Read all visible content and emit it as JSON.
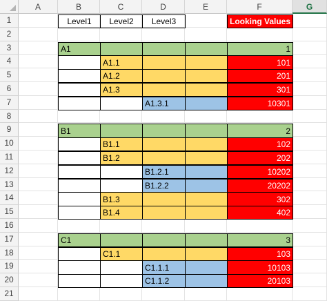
{
  "colors": {
    "green": "#a9d18e",
    "yellow": "#ffd966",
    "blue": "#9dc3e6",
    "red": "#ff0000",
    "white": "#ffffff"
  },
  "columns": [
    "A",
    "B",
    "C",
    "D",
    "E",
    "F",
    "G"
  ],
  "active_column": "G",
  "rows": [
    "1",
    "2",
    "3",
    "4",
    "5",
    "6",
    "7",
    "8",
    "9",
    "10",
    "11",
    "12",
    "13",
    "14",
    "15",
    "16",
    "17",
    "18",
    "19",
    "20",
    "21"
  ],
  "headers": {
    "level1": "Level1",
    "level2": "Level2",
    "level3": "Level3",
    "looking_values": "Looking Values"
  },
  "cells": [
    {
      "row": 3,
      "col": "B",
      "text": "A1",
      "fill": "green"
    },
    {
      "row": 3,
      "col": "C",
      "text": "",
      "fill": "green"
    },
    {
      "row": 3,
      "col": "D",
      "text": "",
      "fill": "green"
    },
    {
      "row": 3,
      "col": "E",
      "text": "",
      "fill": "green"
    },
    {
      "row": 3,
      "col": "F",
      "text": "1",
      "fill": "green",
      "align": "right"
    },
    {
      "row": 4,
      "col": "B",
      "text": "",
      "fill": "white"
    },
    {
      "row": 4,
      "col": "C",
      "text": "A1.1",
      "fill": "yellow"
    },
    {
      "row": 4,
      "col": "D",
      "text": "",
      "fill": "yellow"
    },
    {
      "row": 4,
      "col": "E",
      "text": "",
      "fill": "yellow"
    },
    {
      "row": 4,
      "col": "F",
      "text": "101",
      "fill": "red",
      "align": "right"
    },
    {
      "row": 5,
      "col": "B",
      "text": "",
      "fill": "white"
    },
    {
      "row": 5,
      "col": "C",
      "text": "A1.2",
      "fill": "yellow"
    },
    {
      "row": 5,
      "col": "D",
      "text": "",
      "fill": "yellow"
    },
    {
      "row": 5,
      "col": "E",
      "text": "",
      "fill": "yellow"
    },
    {
      "row": 5,
      "col": "F",
      "text": "201",
      "fill": "red",
      "align": "right"
    },
    {
      "row": 6,
      "col": "B",
      "text": "",
      "fill": "white"
    },
    {
      "row": 6,
      "col": "C",
      "text": "A1.3",
      "fill": "yellow"
    },
    {
      "row": 6,
      "col": "D",
      "text": "",
      "fill": "yellow"
    },
    {
      "row": 6,
      "col": "E",
      "text": "",
      "fill": "yellow"
    },
    {
      "row": 6,
      "col": "F",
      "text": "301",
      "fill": "red",
      "align": "right"
    },
    {
      "row": 7,
      "col": "B",
      "text": "",
      "fill": "white"
    },
    {
      "row": 7,
      "col": "C",
      "text": "",
      "fill": "white"
    },
    {
      "row": 7,
      "col": "D",
      "text": "A1.3.1",
      "fill": "blue"
    },
    {
      "row": 7,
      "col": "E",
      "text": "",
      "fill": "blue"
    },
    {
      "row": 7,
      "col": "F",
      "text": "10301",
      "fill": "red",
      "align": "right"
    },
    {
      "row": 9,
      "col": "B",
      "text": "B1",
      "fill": "green"
    },
    {
      "row": 9,
      "col": "C",
      "text": "",
      "fill": "green"
    },
    {
      "row": 9,
      "col": "D",
      "text": "",
      "fill": "green"
    },
    {
      "row": 9,
      "col": "E",
      "text": "",
      "fill": "green"
    },
    {
      "row": 9,
      "col": "F",
      "text": "2",
      "fill": "green",
      "align": "right"
    },
    {
      "row": 10,
      "col": "B",
      "text": "",
      "fill": "white"
    },
    {
      "row": 10,
      "col": "C",
      "text": "B1.1",
      "fill": "yellow"
    },
    {
      "row": 10,
      "col": "D",
      "text": "",
      "fill": "yellow"
    },
    {
      "row": 10,
      "col": "E",
      "text": "",
      "fill": "yellow"
    },
    {
      "row": 10,
      "col": "F",
      "text": "102",
      "fill": "red",
      "align": "right"
    },
    {
      "row": 11,
      "col": "B",
      "text": "",
      "fill": "white"
    },
    {
      "row": 11,
      "col": "C",
      "text": "B1.2",
      "fill": "yellow"
    },
    {
      "row": 11,
      "col": "D",
      "text": "",
      "fill": "yellow"
    },
    {
      "row": 11,
      "col": "E",
      "text": "",
      "fill": "yellow"
    },
    {
      "row": 11,
      "col": "F",
      "text": "202",
      "fill": "red",
      "align": "right"
    },
    {
      "row": 12,
      "col": "B",
      "text": "",
      "fill": "white"
    },
    {
      "row": 12,
      "col": "C",
      "text": "",
      "fill": "white"
    },
    {
      "row": 12,
      "col": "D",
      "text": "B1.2.1",
      "fill": "blue"
    },
    {
      "row": 12,
      "col": "E",
      "text": "",
      "fill": "blue"
    },
    {
      "row": 12,
      "col": "F",
      "text": "10202",
      "fill": "red",
      "align": "right"
    },
    {
      "row": 13,
      "col": "B",
      "text": "",
      "fill": "white"
    },
    {
      "row": 13,
      "col": "C",
      "text": "",
      "fill": "white"
    },
    {
      "row": 13,
      "col": "D",
      "text": "B1.2.2",
      "fill": "blue"
    },
    {
      "row": 13,
      "col": "E",
      "text": "",
      "fill": "blue"
    },
    {
      "row": 13,
      "col": "F",
      "text": "20202",
      "fill": "red",
      "align": "right"
    },
    {
      "row": 14,
      "col": "B",
      "text": "",
      "fill": "white"
    },
    {
      "row": 14,
      "col": "C",
      "text": "B1.3",
      "fill": "yellow"
    },
    {
      "row": 14,
      "col": "D",
      "text": "",
      "fill": "yellow"
    },
    {
      "row": 14,
      "col": "E",
      "text": "",
      "fill": "yellow"
    },
    {
      "row": 14,
      "col": "F",
      "text": "302",
      "fill": "red",
      "align": "right"
    },
    {
      "row": 15,
      "col": "B",
      "text": "",
      "fill": "white"
    },
    {
      "row": 15,
      "col": "C",
      "text": "B1.4",
      "fill": "yellow"
    },
    {
      "row": 15,
      "col": "D",
      "text": "",
      "fill": "yellow"
    },
    {
      "row": 15,
      "col": "E",
      "text": "",
      "fill": "yellow"
    },
    {
      "row": 15,
      "col": "F",
      "text": "402",
      "fill": "red",
      "align": "right"
    },
    {
      "row": 17,
      "col": "B",
      "text": "C1",
      "fill": "green"
    },
    {
      "row": 17,
      "col": "C",
      "text": "",
      "fill": "green"
    },
    {
      "row": 17,
      "col": "D",
      "text": "",
      "fill": "green"
    },
    {
      "row": 17,
      "col": "E",
      "text": "",
      "fill": "green"
    },
    {
      "row": 17,
      "col": "F",
      "text": "3",
      "fill": "green",
      "align": "right"
    },
    {
      "row": 18,
      "col": "B",
      "text": "",
      "fill": "white"
    },
    {
      "row": 18,
      "col": "C",
      "text": "C1.1",
      "fill": "yellow"
    },
    {
      "row": 18,
      "col": "D",
      "text": "",
      "fill": "yellow"
    },
    {
      "row": 18,
      "col": "E",
      "text": "",
      "fill": "yellow"
    },
    {
      "row": 18,
      "col": "F",
      "text": "103",
      "fill": "red",
      "align": "right"
    },
    {
      "row": 19,
      "col": "B",
      "text": "",
      "fill": "white"
    },
    {
      "row": 19,
      "col": "C",
      "text": "",
      "fill": "white"
    },
    {
      "row": 19,
      "col": "D",
      "text": "C1.1.1",
      "fill": "blue"
    },
    {
      "row": 19,
      "col": "E",
      "text": "",
      "fill": "blue"
    },
    {
      "row": 19,
      "col": "F",
      "text": "10103",
      "fill": "red",
      "align": "right"
    },
    {
      "row": 20,
      "col": "B",
      "text": "",
      "fill": "white"
    },
    {
      "row": 20,
      "col": "C",
      "text": "",
      "fill": "white"
    },
    {
      "row": 20,
      "col": "D",
      "text": "C1.1.2",
      "fill": "blue"
    },
    {
      "row": 20,
      "col": "E",
      "text": "",
      "fill": "blue"
    },
    {
      "row": 20,
      "col": "F",
      "text": "20103",
      "fill": "red",
      "align": "right"
    }
  ]
}
